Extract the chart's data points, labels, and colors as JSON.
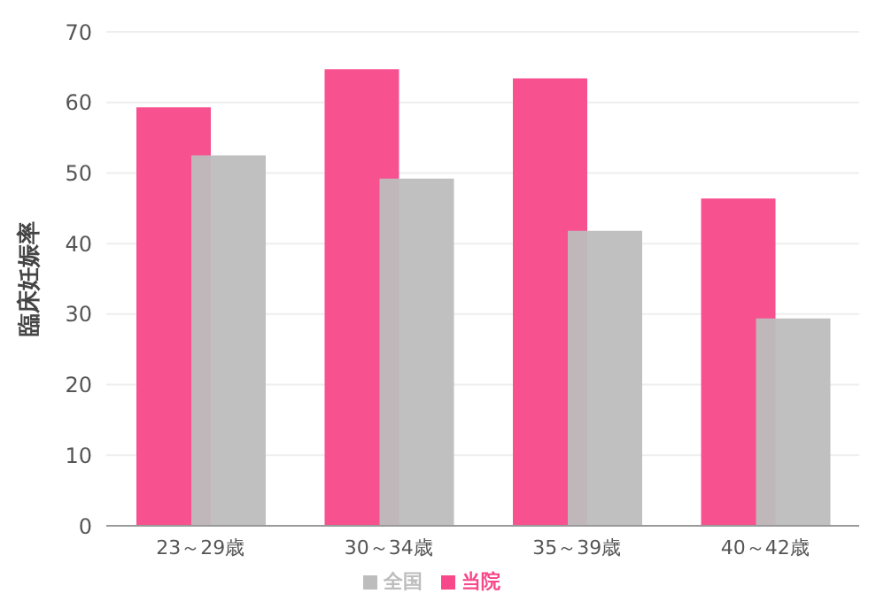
{
  "chart_data": {
    "type": "bar",
    "ylabel": "臨床妊娠率",
    "categories": [
      "23～29歳",
      "30～34歳",
      "35～39歳",
      "40～42歳"
    ],
    "series": [
      {
        "name": "当院",
        "color": "#f7488a",
        "values": [
          59.3,
          64.7,
          63.4,
          46.4
        ]
      },
      {
        "name": "全国",
        "color": "#bdbdbd",
        "values": [
          52.5,
          49.2,
          41.8,
          29.4
        ]
      }
    ],
    "ylim": [
      0,
      70
    ],
    "yticks": [
      0,
      10,
      20,
      30,
      40,
      50,
      60,
      70
    ],
    "grid": "y",
    "legend": "bottom"
  }
}
